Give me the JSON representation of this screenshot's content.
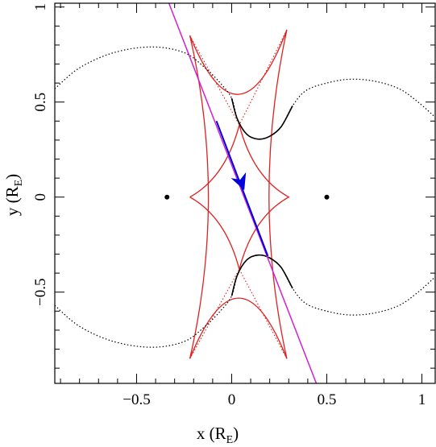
{
  "chart_data": {
    "type": "line",
    "xlabel": {
      "prefix": "x (R",
      "sub": "E",
      "suffix": ")"
    },
    "ylabel": {
      "prefix": "y (R",
      "sub": "E",
      "suffix": ")"
    },
    "xlim": [
      -0.93,
      1.07
    ],
    "ylim": [
      -0.98,
      1.02
    ],
    "xticks": [
      {
        "value": -0.5,
        "label": "−0.5"
      },
      {
        "value": 0,
        "label": "0"
      },
      {
        "value": 0.5,
        "label": "0.5"
      },
      {
        "value": 1,
        "label": "1"
      }
    ],
    "yticks": [
      {
        "value": -0.5,
        "label": "−0.5"
      },
      {
        "value": 0,
        "label": "0"
      },
      {
        "value": 0.5,
        "label": "0.5"
      },
      {
        "value": 1,
        "label": "1"
      }
    ],
    "minor_tick_step": 0.1,
    "grid": false,
    "colors": {
      "caustic": "#e02020",
      "critical": "#000000",
      "trajectory": "#d020d0",
      "path": "#0000dd",
      "lens": "#000000"
    },
    "lenses": [
      {
        "x": -0.34,
        "y": 0.0
      },
      {
        "x": 0.5,
        "y": 0.0
      }
    ],
    "source_trajectory": {
      "start": [
        -0.33,
        1.02
      ],
      "end": [
        0.445,
        -0.98
      ],
      "highlight_start": [
        -0.08,
        0.4
      ],
      "highlight_end": [
        0.19,
        -0.31
      ],
      "arrow_at": [
        0.057,
        0.06
      ]
    },
    "caustic_cusps": [
      [
        -0.22,
        0.85
      ],
      [
        0.29,
        0.88
      ],
      [
        0.29,
        -0.85
      ],
      [
        -0.22,
        -0.85
      ],
      [
        -0.22,
        0.0
      ],
      [
        0.3,
        0.0
      ],
      [
        0.04,
        0.38
      ],
      [
        0.04,
        -0.38
      ]
    ],
    "caustic_cusp_order": {
      "outer": [
        [
          -0.22,
          0.85
        ],
        [
          0.29,
          0.88
        ],
        [
          0.29,
          -0.85
        ],
        [
          -0.22,
          -0.85
        ]
      ],
      "inner": [
        [
          -0.22,
          0.0
        ],
        [
          0.04,
          0.38
        ],
        [
          0.3,
          0.0
        ],
        [
          0.04,
          -0.38
        ]
      ]
    },
    "critical_curve_upper": [
      [
        -0.93,
        0.57
      ],
      [
        -0.8,
        0.68
      ],
      [
        -0.62,
        0.76
      ],
      [
        -0.42,
        0.79
      ],
      [
        -0.25,
        0.76
      ],
      [
        -0.14,
        0.68
      ],
      [
        -0.06,
        0.6
      ],
      [
        0.0,
        0.52
      ],
      [
        0.03,
        0.41
      ],
      [
        0.08,
        0.33
      ],
      [
        0.14,
        0.305
      ],
      [
        0.2,
        0.32
      ],
      [
        0.26,
        0.37
      ],
      [
        0.32,
        0.48
      ],
      [
        0.39,
        0.56
      ],
      [
        0.5,
        0.6
      ],
      [
        0.62,
        0.62
      ],
      [
        0.75,
        0.61
      ],
      [
        0.88,
        0.57
      ],
      [
        0.98,
        0.5
      ],
      [
        1.07,
        0.42
      ]
    ],
    "critical_curve_upper_solid": [
      [
        0.0,
        0.52
      ],
      [
        0.32,
        0.48
      ]
    ]
  }
}
